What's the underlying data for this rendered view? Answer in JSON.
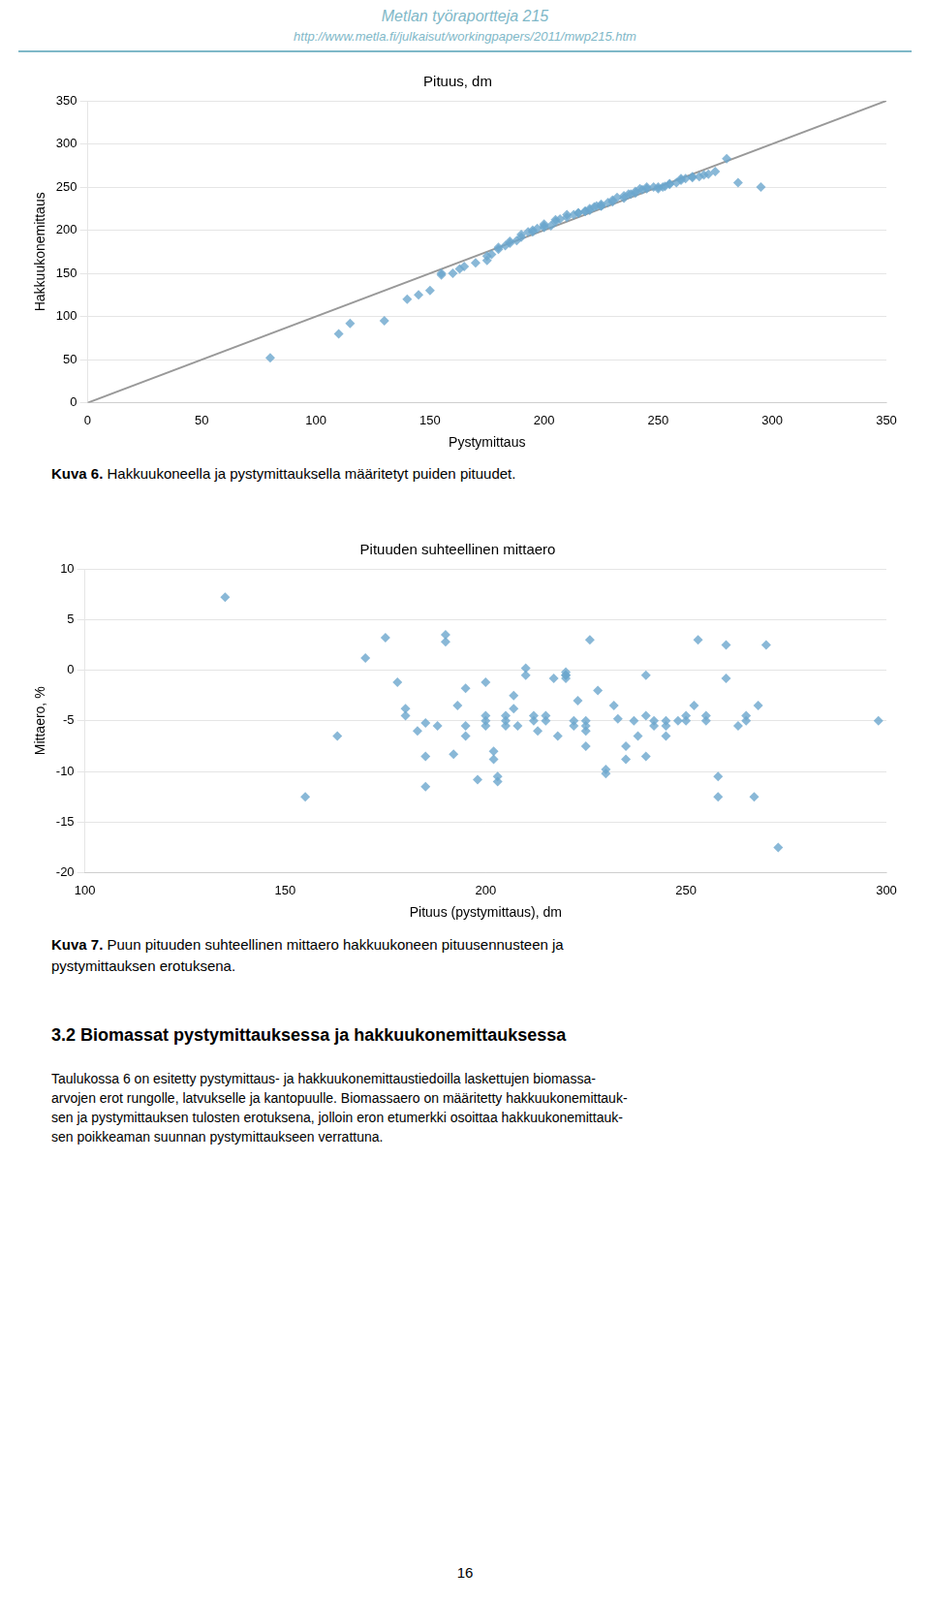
{
  "header": {
    "title": "Metlan työraportteja 215",
    "url": "http://www.metla.fi/julkaisut/workingpapers/2011/mwp215.htm",
    "color": "#7FB8C8"
  },
  "chart_data": [
    {
      "type": "scatter",
      "title": "Pituus, dm",
      "xlabel": "Pystymittaus",
      "ylabel": "Hakkuukonemittaus",
      "xlim": [
        0,
        350
      ],
      "ylim": [
        0,
        350
      ],
      "xticks": [
        0,
        50,
        100,
        150,
        200,
        250,
        300,
        350
      ],
      "yticks": [
        0,
        50,
        100,
        150,
        200,
        250,
        300,
        350
      ],
      "grid": "y",
      "series": [
        {
          "type": "scatter",
          "marker": "diamond",
          "color": "#6CA6CD",
          "x": [
            80,
            110,
            115,
            130,
            140,
            145,
            150,
            155,
            155,
            160,
            163,
            165,
            170,
            175,
            175,
            177,
            180,
            180,
            183,
            185,
            185,
            188,
            190,
            190,
            193,
            195,
            195,
            197,
            200,
            200,
            200,
            203,
            205,
            205,
            207,
            210,
            210,
            213,
            215,
            215,
            218,
            218,
            220,
            220,
            222,
            223,
            225,
            225,
            225,
            228,
            230,
            230,
            232,
            235,
            235,
            237,
            238,
            240,
            240,
            242,
            243,
            245,
            245,
            248,
            250,
            250,
            252,
            253,
            255,
            255,
            258,
            260,
            260,
            262,
            265,
            265,
            268,
            270,
            272,
            275,
            280,
            285,
            295
          ],
          "values": [
            52,
            80,
            92,
            95,
            120,
            125,
            130,
            148,
            150,
            150,
            155,
            158,
            162,
            165,
            170,
            172,
            178,
            180,
            182,
            185,
            187,
            188,
            192,
            195,
            198,
            198,
            200,
            202,
            203,
            205,
            207,
            205,
            210,
            212,
            213,
            215,
            218,
            218,
            220,
            220,
            222,
            222,
            223,
            225,
            227,
            228,
            228,
            228,
            230,
            232,
            233,
            235,
            238,
            237,
            240,
            242,
            242,
            243,
            245,
            248,
            247,
            248,
            250,
            250,
            248,
            250,
            250,
            251,
            253,
            254,
            255,
            258,
            260,
            260,
            261,
            262,
            262,
            264,
            265,
            268,
            283,
            255,
            250
          ]
        },
        {
          "type": "line",
          "line_style": "solid",
          "color": "#999999",
          "x": [
            0,
            350
          ],
          "values": [
            0,
            350
          ]
        }
      ],
      "caption": {
        "label": "Kuva 6.",
        "lines": [
          "Hakkuukoneella ja pystymittauksella määritetyt puiden pituudet."
        ]
      }
    },
    {
      "type": "scatter",
      "title": "Pituuden suhteellinen mittaero",
      "xlabel": "Pituus (pystymittaus), dm",
      "ylabel": "Mittaero, %",
      "xlim": [
        100,
        300
      ],
      "ylim": [
        -20,
        10
      ],
      "xticks": [
        100,
        150,
        200,
        250,
        300
      ],
      "yticks": [
        -20,
        -15,
        -10,
        -5,
        0,
        5,
        10
      ],
      "grid": "y",
      "series": [
        {
          "type": "scatter",
          "marker": "diamond",
          "color": "#6CA6CD",
          "x": [
            135,
            155,
            163,
            170,
            175,
            178,
            180,
            180,
            183,
            185,
            185,
            185,
            188,
            190,
            190,
            192,
            193,
            195,
            195,
            195,
            198,
            200,
            200,
            200,
            200,
            202,
            202,
            203,
            203,
            205,
            205,
            205,
            207,
            207,
            208,
            210,
            210,
            212,
            212,
            213,
            215,
            215,
            217,
            218,
            220,
            220,
            220,
            220,
            222,
            222,
            223,
            225,
            225,
            225,
            225,
            226,
            228,
            230,
            230,
            232,
            233,
            235,
            235,
            237,
            238,
            240,
            240,
            240,
            242,
            242,
            245,
            245,
            245,
            248,
            250,
            250,
            252,
            253,
            255,
            255,
            258,
            258,
            260,
            260,
            263,
            265,
            265,
            267,
            268,
            270,
            273,
            298
          ],
          "values": [
            7.2,
            -12.5,
            -6.5,
            1.2,
            3.2,
            -1.2,
            -4.5,
            -3.8,
            -6.0,
            -5.2,
            -8.5,
            -11.5,
            -5.5,
            2.8,
            3.5,
            -8.3,
            -3.5,
            -1.8,
            -5.5,
            -6.5,
            -10.8,
            -1.2,
            -5.0,
            -5.5,
            -4.5,
            -8.0,
            -8.8,
            -10.5,
            -11.0,
            -5.5,
            -5.0,
            -4.5,
            -3.8,
            -2.5,
            -5.5,
            -0.5,
            0.2,
            -4.5,
            -5.0,
            -6.0,
            -5.0,
            -4.5,
            -0.8,
            -6.5,
            -0.5,
            -0.2,
            -0.8,
            -0.5,
            -5.0,
            -5.5,
            -3.0,
            -5.0,
            -5.5,
            -6.0,
            -7.5,
            3.0,
            -2.0,
            -9.8,
            -10.2,
            -3.5,
            -4.8,
            -7.5,
            -8.8,
            -5.0,
            -6.5,
            -0.5,
            -4.5,
            -8.5,
            -5.0,
            -5.5,
            -5.0,
            -5.5,
            -6.5,
            -5.0,
            -4.5,
            -5.0,
            -3.5,
            3.0,
            -5.0,
            -4.5,
            -10.5,
            -12.5,
            -0.8,
            2.5,
            -5.5,
            -5.0,
            -4.5,
            -12.5,
            -3.5,
            2.5,
            -17.5,
            -5.0
          ]
        }
      ],
      "caption": {
        "label": "Kuva 7.",
        "lines": [
          "Puun pituuden suhteellinen mittaero hakkuukoneen pituusennusteen ja",
          "pystymittauksen erotuksena."
        ]
      }
    }
  ],
  "section_title": "3.2  Biomassat pystymittauksessa ja hakkuukonemittauksessa",
  "paragraph": [
    "Taulukossa 6 on esitetty pystymittaus- ja hakkuukonemittaustiedoilla laskettujen biomassa-",
    "arvojen erot rungolle, latvukselle ja kantopuulle. Biomassaero on määritetty hakkuukonemittauk-",
    "sen ja pystymittauksen tulosten erotuksena, jolloin eron etumerkki osoittaa hakkuukonemittauk-",
    "sen poikkeaman suunnan pystymittaukseen verrattuna."
  ],
  "page_number": "16"
}
